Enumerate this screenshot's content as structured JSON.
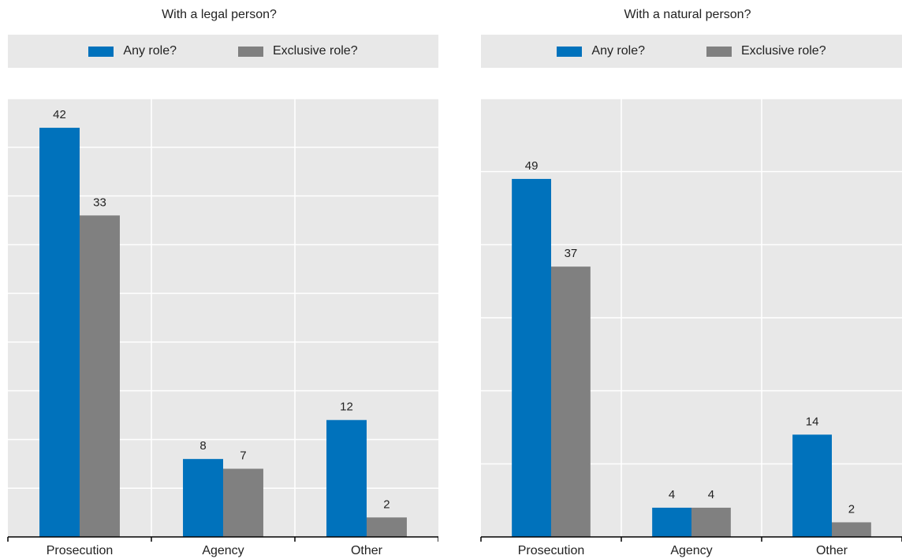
{
  "colors": {
    "any_role": "#0072bc",
    "exclusive_role": "#808080",
    "plot_bg": "#e8e8e8",
    "grid": "#ffffff",
    "axis": "#000000"
  },
  "legend": {
    "any_role_label": "Any role?",
    "exclusive_role_label": "Exclusive role?"
  },
  "chart_data": [
    {
      "type": "bar",
      "title": "With a legal person?",
      "categories": [
        "Prosecution",
        "Agency",
        "Other"
      ],
      "series": [
        {
          "name": "Any role?",
          "values": [
            42,
            8,
            12
          ]
        },
        {
          "name": "Exclusive role?",
          "values": [
            33,
            7,
            2
          ]
        }
      ],
      "ylim": [
        0,
        45
      ],
      "grid": true,
      "legend_position": "top"
    },
    {
      "type": "bar",
      "title": "With a natural person?",
      "categories": [
        "Prosecution",
        "Agency",
        "Other"
      ],
      "series": [
        {
          "name": "Any role?",
          "values": [
            49,
            4,
            14
          ]
        },
        {
          "name": "Exclusive role?",
          "values": [
            37,
            4,
            2
          ]
        }
      ],
      "ylim": [
        0,
        60
      ],
      "grid": true,
      "legend_position": "top"
    }
  ]
}
